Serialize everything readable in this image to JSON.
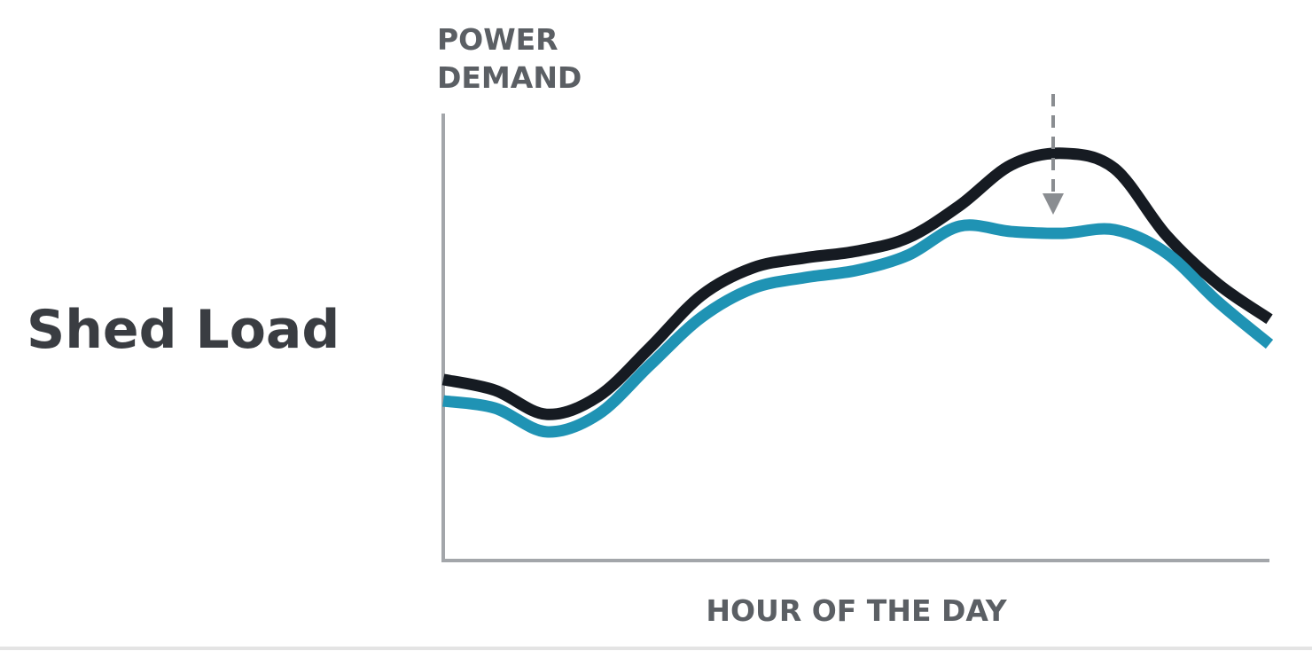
{
  "chart_data": {
    "type": "line",
    "title": "Shed Load",
    "ylabel": [
      "POWER",
      "DEMAND"
    ],
    "xlabel": "HOUR OF THE DAY",
    "x": [
      0,
      1.5,
      3,
      4.5,
      6,
      7.5,
      9,
      10.5,
      12,
      13.5,
      15,
      16.5,
      18,
      19.5,
      21,
      22.5,
      24
    ],
    "xlim": [
      0,
      24
    ],
    "ylim": [
      0,
      100
    ],
    "series": [
      {
        "color": "#161b22",
        "values": [
          40.5,
          38.1,
          32.7,
          36.7,
          47.6,
          59.3,
          65.5,
          67.7,
          69.2,
          72.2,
          79.4,
          88.5,
          91.1,
          87.7,
          72.8,
          61.9,
          54.0
        ]
      },
      {
        "color": "#1f93b4",
        "values": [
          35.7,
          34.1,
          28.8,
          32.7,
          43.7,
          54.4,
          60.9,
          63.3,
          64.9,
          68.3,
          74.8,
          73.6,
          73.2,
          74.0,
          68.8,
          57.9,
          48.4
        ]
      }
    ]
  }
}
